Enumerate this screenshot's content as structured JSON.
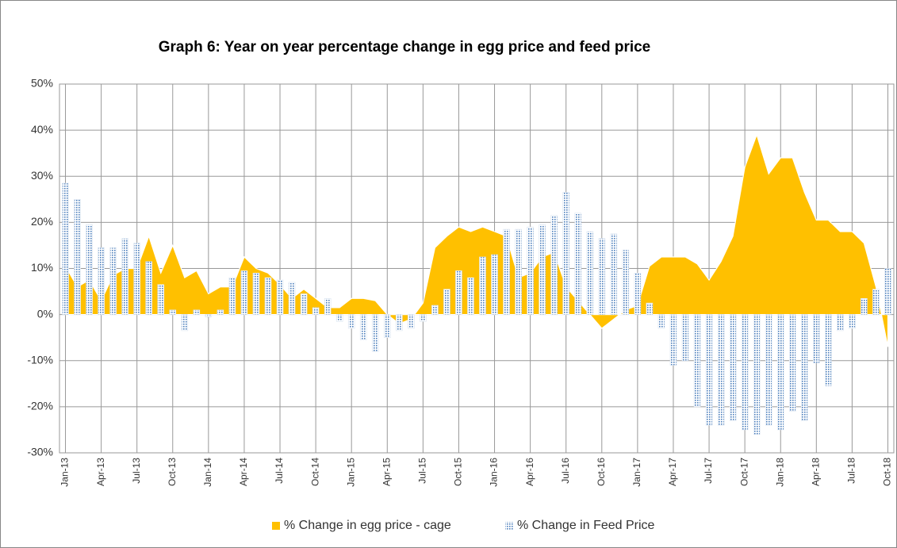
{
  "chart_data": {
    "type": "combo",
    "title": "Graph 6: Year on year percentage change in egg price and feed price",
    "categories": [
      "Jan-13",
      null,
      null,
      "Apr-13",
      null,
      null,
      "Jul-13",
      null,
      null,
      "Oct-13",
      null,
      null,
      "Jan-14",
      null,
      null,
      "Apr-14",
      null,
      null,
      "Jul-14",
      null,
      null,
      "Oct-14",
      null,
      null,
      "Jan-15",
      null,
      null,
      "Apr-15",
      null,
      null,
      "Jul-15",
      null,
      null,
      "Oct-15",
      null,
      null,
      "Jan-16",
      null,
      null,
      "Apr-16",
      null,
      null,
      "Jul-16",
      null,
      null,
      "Oct-16",
      null,
      null,
      "Jan-17",
      null,
      null,
      "Apr-17",
      null,
      null,
      "Jul-17",
      null,
      null,
      "Oct-17",
      null,
      null,
      "Jan-18",
      null,
      null,
      "Apr-18",
      null,
      null,
      "Jul-18",
      null,
      null,
      "Oct-18"
    ],
    "series": [
      {
        "name": "% Change in egg price - cage",
        "type": "area",
        "color": "#ffc000",
        "values": [
          10.5,
          6,
          7.5,
          3,
          8.5,
          10,
          10,
          17,
          9,
          15,
          8,
          9.5,
          4.5,
          6,
          6,
          12.5,
          10,
          9,
          6.5,
          3.5,
          5.5,
          3.5,
          1.5,
          1.5,
          3.5,
          3.5,
          3,
          0,
          -2,
          -1,
          2.5,
          14.5,
          17,
          19,
          18,
          19,
          18,
          17,
          8,
          9,
          12.5,
          13.5,
          6,
          3,
          0,
          -3,
          -1,
          1,
          2,
          10.5,
          12.5,
          12.5,
          12.5,
          11,
          7.5,
          11.5,
          17,
          32,
          39,
          30.5,
          34,
          34,
          26.5,
          20.5,
          20.5,
          18,
          18,
          15.5,
          6,
          -7
        ]
      },
      {
        "name": "% Change in Feed Price",
        "type": "bar",
        "color": "#4f81bd",
        "values": [
          28.5,
          25,
          19.5,
          14.5,
          14.5,
          16.5,
          15.5,
          11.5,
          6.5,
          1,
          -3.5,
          1,
          -0.5,
          1,
          8,
          9.5,
          9,
          8,
          7.5,
          7,
          4.5,
          1.5,
          3.5,
          -1.5,
          -3,
          -5.5,
          -8,
          -5,
          -3.5,
          -3,
          -1.5,
          2,
          5.5,
          9.5,
          8,
          12.5,
          13,
          18.5,
          18.5,
          19,
          19.5,
          21.5,
          26.5,
          22,
          18,
          16.5,
          17.5,
          14,
          9,
          2.5,
          -3,
          -11,
          -10,
          -20,
          -24,
          -24,
          -23,
          -25,
          -26,
          -24,
          -25,
          -21,
          -23,
          -10.5,
          -15.5,
          -3.5,
          -3,
          3.5,
          5.5,
          10
        ]
      }
    ],
    "ylim": [
      -30,
      50
    ],
    "yticks": [
      {
        "value": -30,
        "label": "-30%"
      },
      {
        "value": -20,
        "label": "-20%"
      },
      {
        "value": -10,
        "label": "-10%"
      },
      {
        "value": 0,
        "label": "0%"
      },
      {
        "value": 10,
        "label": "10%"
      },
      {
        "value": 20,
        "label": "20%"
      },
      {
        "value": 30,
        "label": "30%"
      },
      {
        "value": 40,
        "label": "40%"
      },
      {
        "value": 50,
        "label": "50%"
      }
    ],
    "grid": true,
    "legend": "bottom"
  }
}
